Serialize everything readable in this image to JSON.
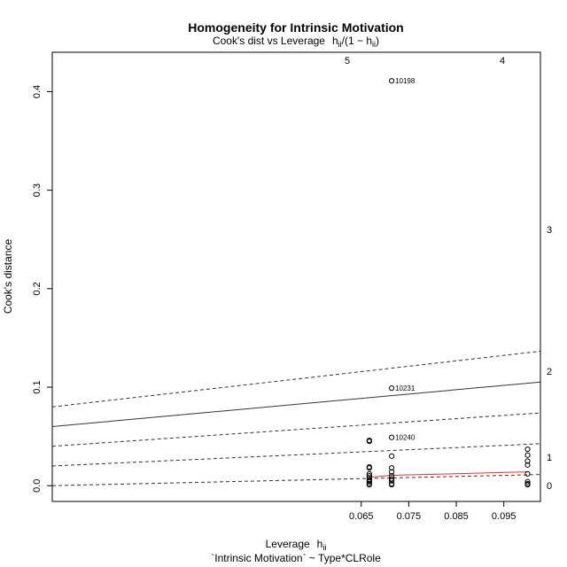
{
  "chart_data": {
    "type": "scatter",
    "title": "Homogeneity for Intrinsic Motivation",
    "subtitle": {
      "prefix": "Cook's dist vs Leverage",
      "h": "h",
      "ii": "ii",
      "formula_open": "/(1 − ",
      "formula_close": ")"
    },
    "xlabel": {
      "text": "Leverage",
      "h": "h",
      "ii": "ii"
    },
    "ylabel": "Cook's distance",
    "caption": "`Intrinsic Motivation` ~ Type*CLRole",
    "xlim": [
      0.0,
      0.1027
    ],
    "ylim": [
      -0.016,
      0.44
    ],
    "xticks": [
      0.065,
      0.075,
      0.085,
      0.095
    ],
    "xtick_labels": [
      "0.065",
      "0.075",
      "0.085",
      "0.095"
    ],
    "yticks": [
      0.0,
      0.1,
      0.2,
      0.3,
      0.4
    ],
    "ytick_labels": [
      "0.0",
      "0.1",
      "0.2",
      "0.3",
      "0.4"
    ],
    "points": [
      {
        "x": 0.0667,
        "y": 0.045
      },
      {
        "x": 0.0667,
        "y": 0.046
      },
      {
        "x": 0.0667,
        "y": 0.019
      },
      {
        "x": 0.0667,
        "y": 0.018
      },
      {
        "x": 0.0667,
        "y": 0.012
      },
      {
        "x": 0.0667,
        "y": 0.01
      },
      {
        "x": 0.0667,
        "y": 0.008
      },
      {
        "x": 0.0667,
        "y": 0.006
      },
      {
        "x": 0.0667,
        "y": 0.005
      },
      {
        "x": 0.0667,
        "y": 0.004
      },
      {
        "x": 0.0667,
        "y": 0.002
      },
      {
        "x": 0.0667,
        "y": 0.001
      },
      {
        "x": 0.0714,
        "y": 0.411
      },
      {
        "x": 0.0714,
        "y": 0.099
      },
      {
        "x": 0.0714,
        "y": 0.049
      },
      {
        "x": 0.0714,
        "y": 0.03
      },
      {
        "x": 0.0714,
        "y": 0.018
      },
      {
        "x": 0.0714,
        "y": 0.014
      },
      {
        "x": 0.0714,
        "y": 0.01
      },
      {
        "x": 0.0714,
        "y": 0.007
      },
      {
        "x": 0.0714,
        "y": 0.005
      },
      {
        "x": 0.0714,
        "y": 0.002
      },
      {
        "x": 0.0714,
        "y": 0.001
      },
      {
        "x": 0.1,
        "y": 0.037
      },
      {
        "x": 0.1,
        "y": 0.031
      },
      {
        "x": 0.1,
        "y": 0.025
      },
      {
        "x": 0.1,
        "y": 0.021
      },
      {
        "x": 0.1,
        "y": 0.012
      },
      {
        "x": 0.1,
        "y": 0.004
      },
      {
        "x": 0.1,
        "y": 0.002
      },
      {
        "x": 0.1,
        "y": 0.001
      }
    ],
    "point_labels": [
      {
        "text": "10198",
        "x": 0.0714,
        "y": 0.411
      },
      {
        "text": "10231",
        "x": 0.0714,
        "y": 0.099
      },
      {
        "text": "10240",
        "x": 0.0714,
        "y": 0.049
      }
    ],
    "smooth_line": {
      "color": "#e8302a",
      "points": [
        [
          0.0667,
          0.0085
        ],
        [
          0.0714,
          0.0105
        ],
        [
          0.1,
          0.014
        ]
      ]
    },
    "contours": [
      {
        "label": "5",
        "slope": 5.0,
        "linetype": "dashed",
        "show_label": true
      },
      {
        "label": "4",
        "slope": 4.0,
        "linetype": "solid",
        "show_label": true
      },
      {
        "label": "3",
        "slope": 3.0,
        "linetype": "dashed",
        "show_label": false
      },
      {
        "label": "2",
        "slope": 2.0,
        "linetype": "dashed",
        "show_label": true
      },
      {
        "label": "1",
        "slope": 1.0,
        "linetype": "dashed",
        "show_label": false
      },
      {
        "label": "0",
        "slope": 0.0,
        "linetype": "dashed",
        "show_label": false
      }
    ],
    "right_labels": [
      {
        "text": "3",
        "y": 0.26
      },
      {
        "text": "2",
        "y": 0.116
      },
      {
        "text": "1",
        "y": 0.029
      },
      {
        "text": "0",
        "y": 0.0
      }
    ]
  }
}
